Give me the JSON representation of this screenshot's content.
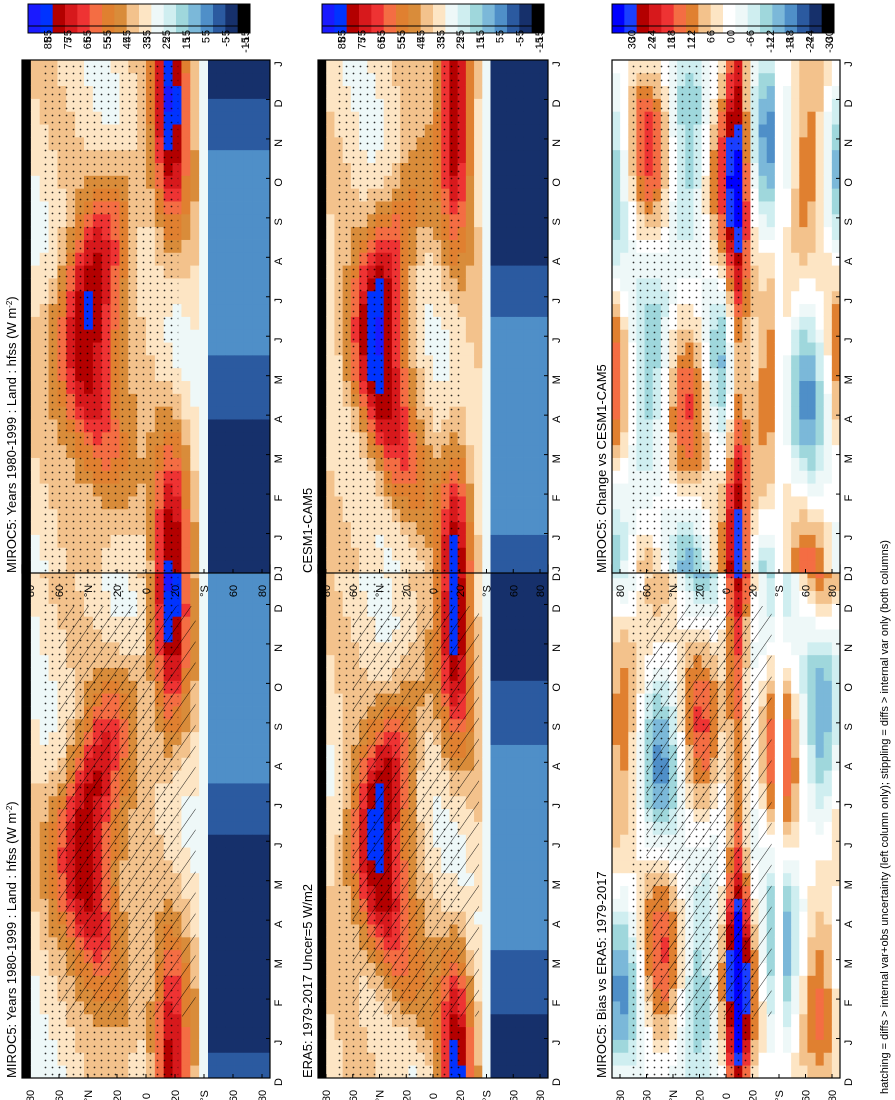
{
  "footnote": "hatching = diffs > internal var+obs uncertainty (left column only); stippling = diffs > internal var only (both columns)",
  "colormaps": {
    "abs": [
      "#1a1aff",
      "#0033ff",
      "#b30000",
      "#d7191c",
      "#ee3333",
      "#f46d43",
      "#e08030",
      "#d98c3a",
      "#f3c28c",
      "#fde5c4",
      "#eef8f8",
      "#cfeef0",
      "#9fd7dc",
      "#7bb8d9",
      "#4f8fc8",
      "#2b5aa0",
      "#16306b",
      "#000000"
    ],
    "diff": [
      "#0000ff",
      "#1a3fff",
      "#b30000",
      "#d7191c",
      "#ee3333",
      "#f46d43",
      "#e08030",
      "#f3c28c",
      "#fde5c4",
      "#ffffff",
      "#eef8f8",
      "#cfeef0",
      "#9fd7dc",
      "#7bb8d9",
      "#4f8fc8",
      "#2b5aa0",
      "#16306b",
      "#000000"
    ]
  },
  "chart_data": [
    {
      "id": "miroc5-left",
      "type": "heatmap",
      "title": "MIROC5: Years 1980-1999 : Land : hfss (W m",
      "title_sup": "-2",
      "title_tail": ")",
      "x_ticks": [
        "D",
        "J",
        "F",
        "M",
        "A",
        "M",
        "J",
        "J",
        "A",
        "S",
        "O",
        "N",
        "D",
        "J"
      ],
      "y_ticks": [
        "80",
        "60",
        "°N",
        "20",
        "0",
        "20",
        "°S",
        "60",
        "80"
      ],
      "colorbar": "abs",
      "colorbar_labels": [
        "85",
        "75",
        "65",
        "55",
        "45",
        "35",
        "25",
        "15",
        "5",
        "-5",
        "-15"
      ],
      "hatching": true,
      "stippling": true,
      "field": "abs"
    },
    {
      "id": "miroc5-right",
      "type": "heatmap",
      "title": "MIROC5: Years 1980-1999 : Land : hfss (W m",
      "title_sup": "-2",
      "title_tail": ")",
      "x_ticks": [
        "D",
        "J",
        "F",
        "M",
        "A",
        "M",
        "J",
        "J",
        "A",
        "S",
        "O",
        "N",
        "D",
        "J"
      ],
      "y_ticks": [
        "80",
        "60",
        "°N",
        "20",
        "0",
        "20",
        "°S",
        "60",
        "80"
      ],
      "colorbar": "abs",
      "colorbar_labels": [
        "85",
        "75",
        "65",
        "55",
        "45",
        "35",
        "25",
        "15",
        "5",
        "-5",
        "-15"
      ],
      "hatching": false,
      "stippling": true,
      "field": "abs"
    },
    {
      "id": "era5",
      "type": "heatmap",
      "title": "ERA5: 1979-2017 Uncer=5 W/m2",
      "title_sup": "",
      "title_tail": "",
      "x_ticks": [
        "D",
        "J",
        "F",
        "M",
        "A",
        "M",
        "J",
        "J",
        "A",
        "S",
        "O",
        "N",
        "D",
        "J"
      ],
      "y_ticks": [
        "80",
        "60",
        "°N",
        "20",
        "0",
        "20",
        "°S",
        "60",
        "80"
      ],
      "colorbar": "abs",
      "colorbar_labels": [
        "85",
        "75",
        "65",
        "55",
        "45",
        "35",
        "25",
        "15",
        "5",
        "-5",
        "-15"
      ],
      "hatching": true,
      "stippling": true,
      "field": "abs"
    },
    {
      "id": "cesm",
      "type": "heatmap",
      "title": "CESM1-CAM5",
      "title_sup": "",
      "title_tail": "",
      "x_ticks": [
        "D",
        "J",
        "F",
        "M",
        "A",
        "M",
        "J",
        "J",
        "A",
        "S",
        "O",
        "N",
        "D",
        "J"
      ],
      "y_ticks": [
        "80",
        "60",
        "°N",
        "20",
        "0",
        "20",
        "°S",
        "60",
        "80"
      ],
      "colorbar": "abs",
      "colorbar_labels": [
        "85",
        "75",
        "65",
        "55",
        "45",
        "35",
        "25",
        "15",
        "5",
        "-5",
        "-15"
      ],
      "hatching": false,
      "stippling": true,
      "field": "abs"
    },
    {
      "id": "bias",
      "type": "heatmap",
      "title": "MIROC5: Bias vs ERA5: 1979-2017",
      "title_sup": "",
      "title_tail": "",
      "x_ticks": [
        "D",
        "J",
        "F",
        "M",
        "A",
        "M",
        "J",
        "J",
        "A",
        "S",
        "O",
        "N",
        "D",
        "J"
      ],
      "y_ticks": [
        "80",
        "60",
        "°N",
        "20",
        "0",
        "20",
        "°S",
        "60",
        "80"
      ],
      "colorbar": "diff",
      "colorbar_labels": [
        "30",
        "24",
        "18",
        "12",
        "6",
        "0",
        "-6",
        "-12",
        "-18",
        "-24",
        "-30"
      ],
      "hatching": true,
      "stippling": true,
      "field": "bias"
    },
    {
      "id": "change",
      "type": "heatmap",
      "title": "MIROC5: Change vs CESM1-CAM5",
      "title_sup": "",
      "title_tail": "",
      "x_ticks": [
        "D",
        "J",
        "F",
        "M",
        "A",
        "M",
        "J",
        "J",
        "A",
        "S",
        "O",
        "N",
        "D",
        "J"
      ],
      "y_ticks": [
        "80",
        "60",
        "°N",
        "20",
        "0",
        "20",
        "°S",
        "60",
        "80"
      ],
      "colorbar": "diff",
      "colorbar_labels": [
        "30",
        "24",
        "18",
        "12",
        "6",
        "0",
        "-6",
        "-12",
        "-18",
        "-24",
        "-30"
      ],
      "hatching": false,
      "stippling": true,
      "field": "change"
    }
  ]
}
